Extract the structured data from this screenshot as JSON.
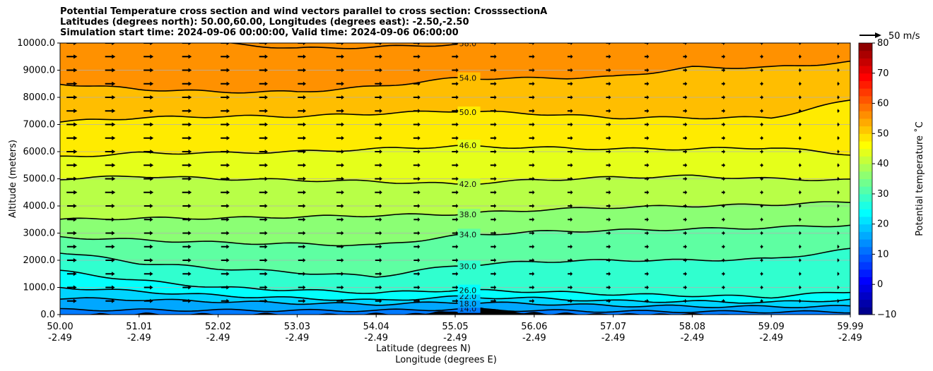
{
  "chart_data": {
    "type": "contour",
    "title_lines": [
      "Potential Temperature cross section and wind vectors parallel to cross section: CrosssectionA",
      "Latitudes (degrees north): 50.00,60.00, Longitudes (degrees east): -2.50,-2.50",
      "Simulation start time: 2024-09-06 00:00:00, Valid time: 2024-09-06 06:00:00"
    ],
    "ylabel": "Altitude (meters)",
    "xlabel_lines": [
      "Latitude (degrees N)",
      "Longitude (degrees E)"
    ],
    "ylim": [
      0,
      10000
    ],
    "y_ticks": [
      "0.0",
      "1000.0",
      "2000.0",
      "3000.0",
      "4000.0",
      "5000.0",
      "6000.0",
      "7000.0",
      "8000.0",
      "9000.0",
      "10000.0"
    ],
    "y_tick_values": [
      0,
      1000,
      2000,
      3000,
      4000,
      5000,
      6000,
      7000,
      8000,
      9000,
      10000
    ],
    "xlim": [
      50.0,
      59.99
    ],
    "x_ticks": [
      {
        "lat": "50.00",
        "lon": "-2.49"
      },
      {
        "lat": "51.01",
        "lon": "-2.49"
      },
      {
        "lat": "52.02",
        "lon": "-2.49"
      },
      {
        "lat": "53.03",
        "lon": "-2.49"
      },
      {
        "lat": "54.04",
        "lon": "-2.49"
      },
      {
        "lat": "55.05",
        "lon": "-2.49"
      },
      {
        "lat": "56.06",
        "lon": "-2.49"
      },
      {
        "lat": "57.07",
        "lon": "-2.49"
      },
      {
        "lat": "58.08",
        "lon": "-2.49"
      },
      {
        "lat": "59.09",
        "lon": "-2.49"
      },
      {
        "lat": "59.99",
        "lon": "-2.49"
      }
    ],
    "x_tick_values": [
      50.0,
      51.01,
      52.02,
      53.03,
      54.04,
      55.05,
      56.06,
      57.07,
      58.08,
      59.09,
      59.99
    ],
    "grid": "horizontal",
    "contours": [
      {
        "level": 14,
        "label": "14.0",
        "heights": [
          180,
          170,
          160,
          150,
          150,
          200,
          150,
          120,
          110,
          100,
          100
        ]
      },
      {
        "level": 18,
        "label": "18.0",
        "heights": [
          600,
          550,
          480,
          420,
          380,
          450,
          400,
          330,
          300,
          290,
          300
        ]
      },
      {
        "level": 22,
        "label": "22.0",
        "heights": [
          1000,
          850,
          700,
          600,
          520,
          650,
          600,
          500,
          480,
          450,
          550
        ]
      },
      {
        "level": 26,
        "label": "26.0",
        "heights": [
          1600,
          1250,
          1000,
          900,
          800,
          900,
          850,
          750,
          700,
          650,
          850
        ]
      },
      {
        "level": 30,
        "label": "30.0",
        "heights": [
          2300,
          1900,
          1700,
          1550,
          1400,
          1800,
          1950,
          2000,
          2000,
          2050,
          2400
        ]
      },
      {
        "level": 34,
        "label": "34.0",
        "heights": [
          2850,
          2750,
          2650,
          2600,
          2550,
          2900,
          3050,
          3100,
          3150,
          3200,
          3300
        ]
      },
      {
        "level": 38,
        "label": "38.0",
        "heights": [
          3500,
          3550,
          3550,
          3600,
          3650,
          3700,
          3850,
          3950,
          4000,
          4050,
          4150
        ]
      },
      {
        "level": 42,
        "label": "42.0",
        "heights": [
          5000,
          5100,
          5000,
          4950,
          4900,
          4800,
          4950,
          5050,
          5100,
          5000,
          4950
        ]
      },
      {
        "level": 46,
        "label": "46.0",
        "heights": [
          5800,
          5950,
          5950,
          6000,
          6100,
          6200,
          6150,
          6100,
          6100,
          6150,
          5900
        ]
      },
      {
        "level": 50,
        "label": "50.0",
        "heights": [
          7100,
          7250,
          7300,
          7300,
          7400,
          7500,
          7400,
          7250,
          7250,
          7250,
          7900
        ]
      },
      {
        "level": 54,
        "label": "54.0",
        "heights": [
          8500,
          8300,
          8200,
          8200,
          8400,
          8700,
          8700,
          8750,
          9100,
          9100,
          9300
        ]
      },
      {
        "level": 58,
        "label": "58.0",
        "heights": [
          10500,
          10500,
          10000,
          9800,
          9850,
          9950,
          10100,
          10200,
          10300,
          10400,
          10500
        ]
      }
    ],
    "quiver_key_label": "50 m/s",
    "colorbar": {
      "label": "Potential temperature ˚C",
      "vmin": -10,
      "vmax": 80,
      "ticks": [
        -10,
        0,
        10,
        20,
        30,
        40,
        50,
        60,
        70,
        80
      ],
      "tick_labels": [
        "−10",
        "0",
        "10",
        "20",
        "30",
        "40",
        "50",
        "60",
        "70",
        "80"
      ],
      "colormap": "jet"
    }
  }
}
